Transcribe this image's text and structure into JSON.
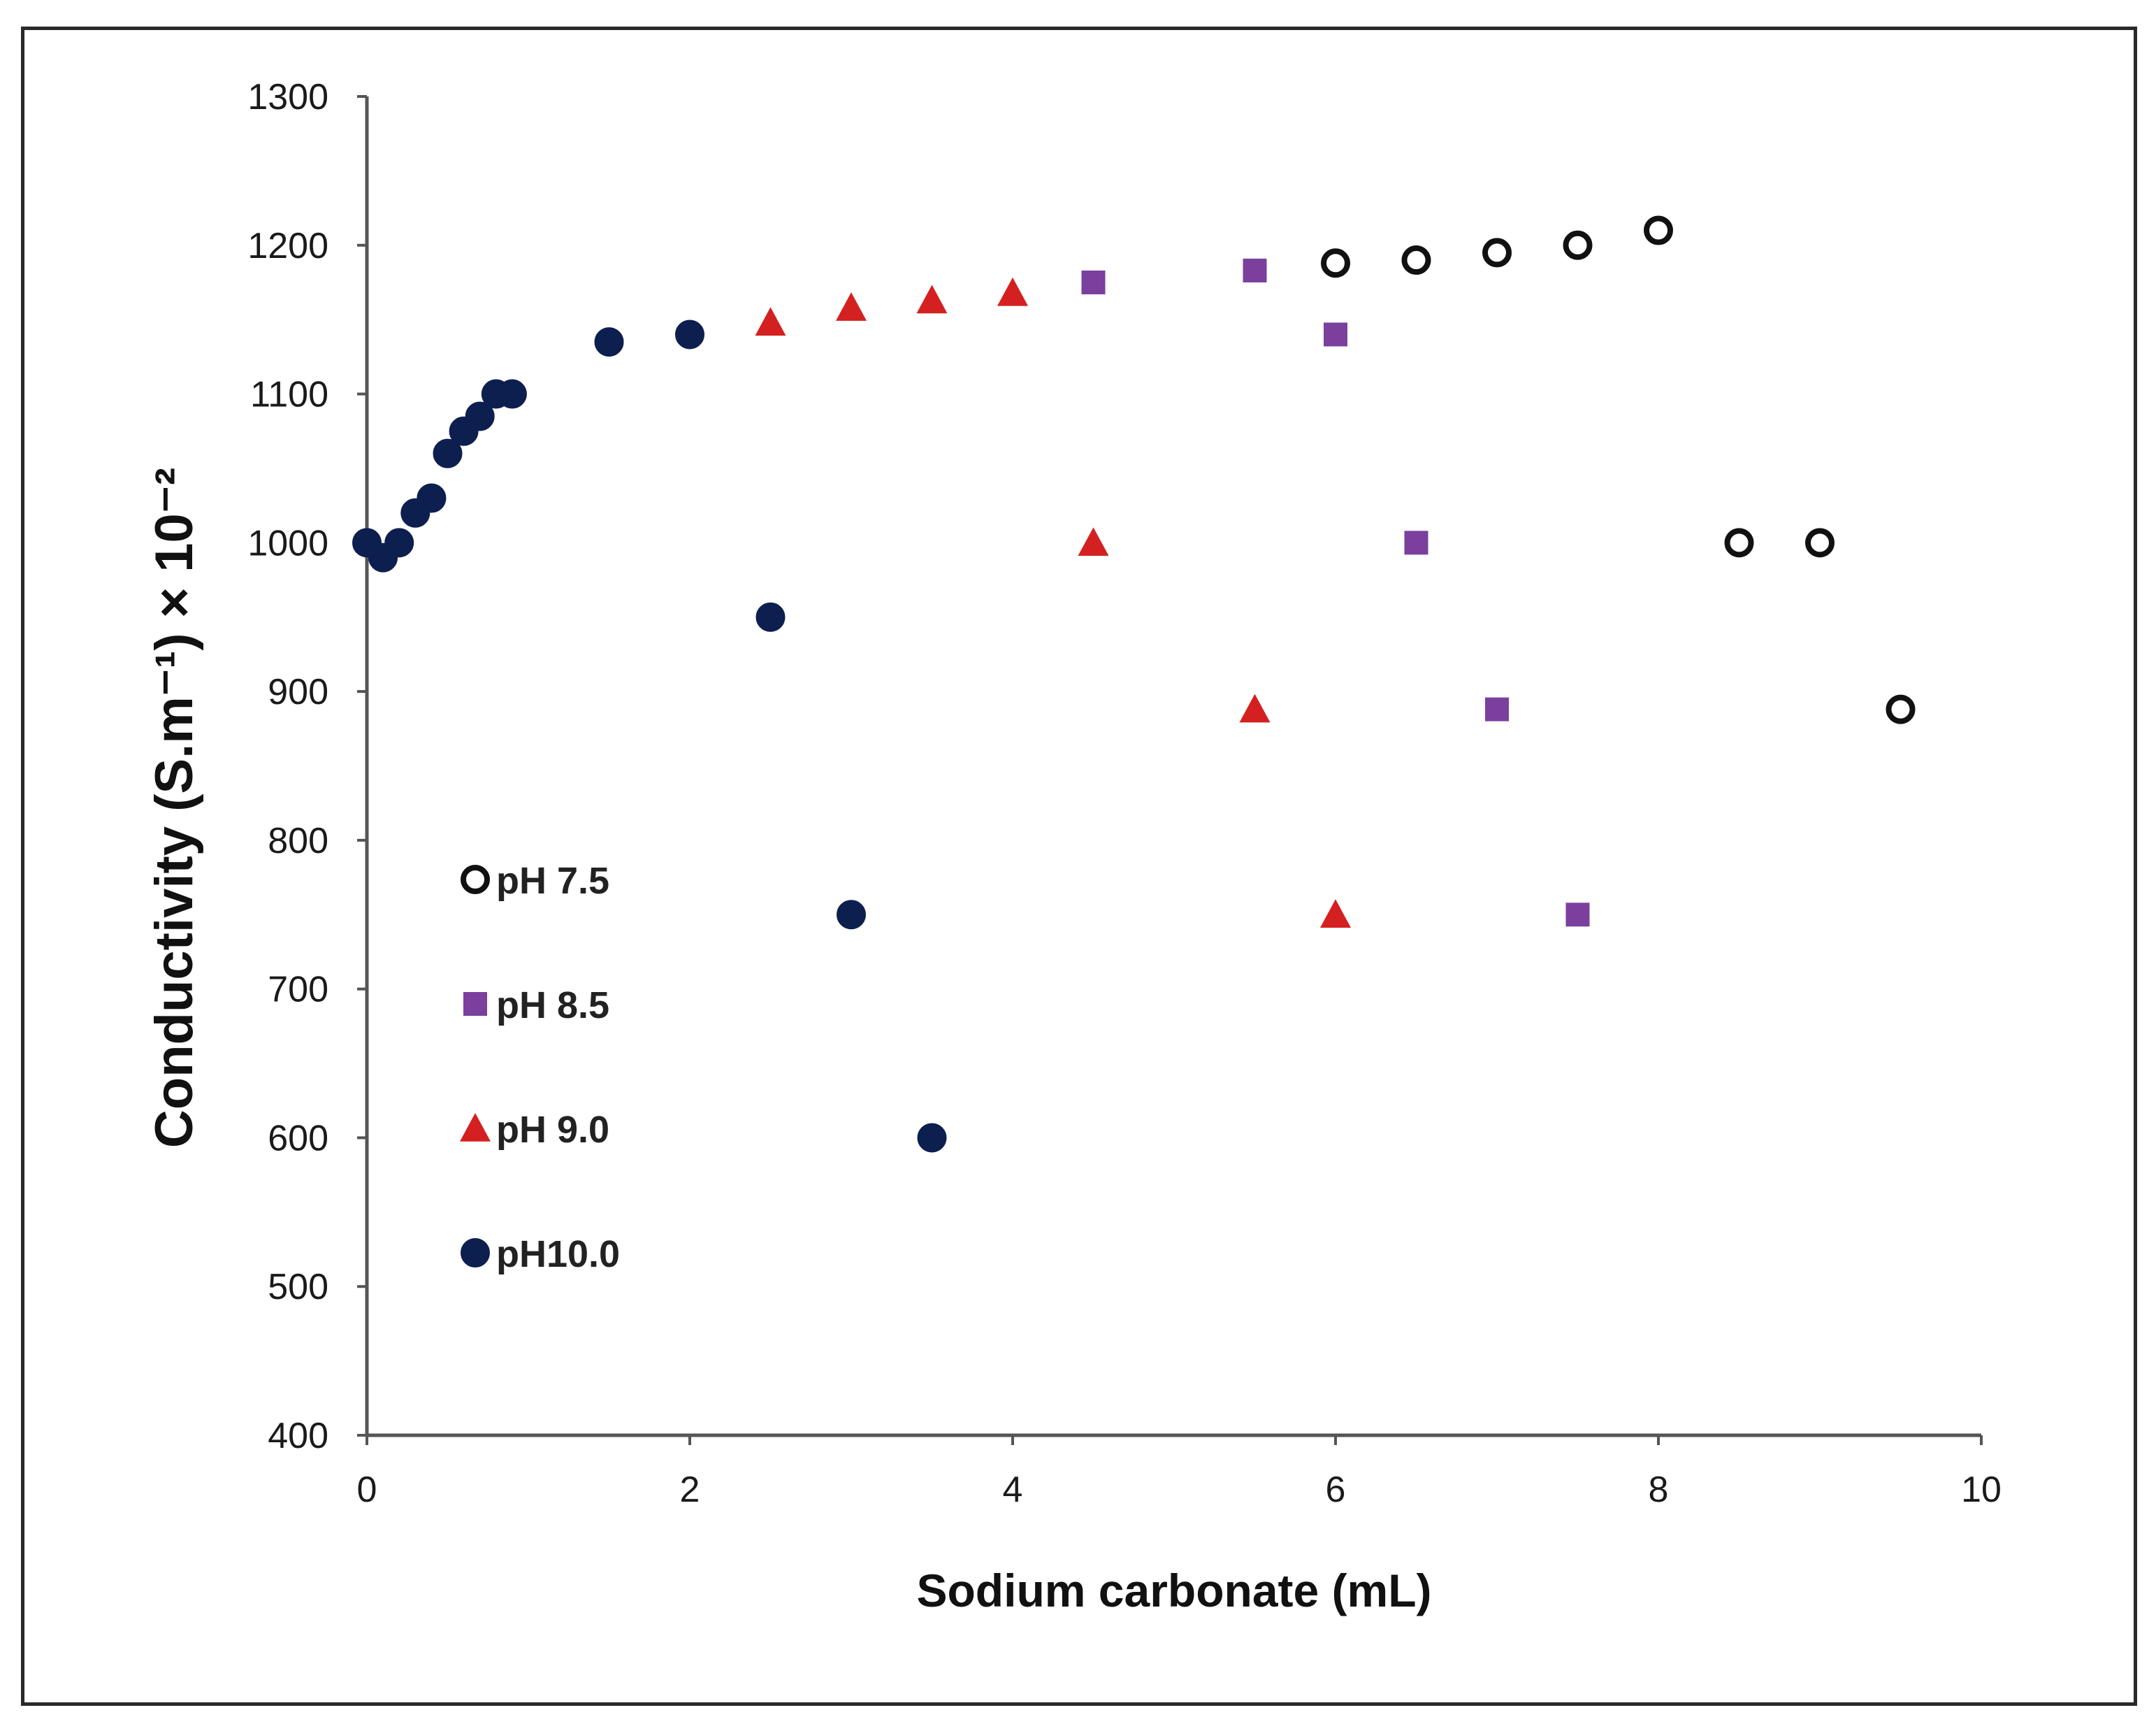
{
  "chart_data": {
    "type": "scatter",
    "title": "",
    "xlabel": "Sodium carbonate (mL)",
    "ylabel": "Conductivity (S.m⁻¹) × 10⁻²",
    "xlim": [
      0,
      10
    ],
    "ylim": [
      400,
      1300
    ],
    "x_ticks": [
      "0",
      "2",
      "4",
      "6",
      "8",
      "10"
    ],
    "y_ticks": [
      "400",
      "500",
      "600",
      "700",
      "800",
      "900",
      "1000",
      "1100",
      "1200",
      "1300"
    ],
    "grid": false,
    "legend_position": "left-center",
    "series": [
      {
        "name": "pH 7.5",
        "marker": "open-circle",
        "color": "#111111",
        "points": [
          [
            6.0,
            1188
          ],
          [
            6.5,
            1190
          ],
          [
            7.0,
            1195
          ],
          [
            7.5,
            1200
          ],
          [
            8.0,
            1210
          ],
          [
            8.5,
            1000
          ],
          [
            9.0,
            1000
          ],
          [
            9.5,
            888
          ]
        ]
      },
      {
        "name": "pH 8.5",
        "marker": "square",
        "color": "#7b3f9e",
        "points": [
          [
            4.5,
            1175
          ],
          [
            5.5,
            1183
          ],
          [
            6.0,
            1140
          ],
          [
            6.5,
            1000
          ],
          [
            7.0,
            888
          ],
          [
            7.5,
            750
          ]
        ]
      },
      {
        "name": "pH 9.0",
        "marker": "triangle",
        "color": "#d42020",
        "points": [
          [
            2.5,
            1148
          ],
          [
            3.0,
            1158
          ],
          [
            3.5,
            1163
          ],
          [
            4.0,
            1168
          ],
          [
            4.5,
            1000
          ],
          [
            5.5,
            888
          ],
          [
            6.0,
            750
          ]
        ]
      },
      {
        "name": "pH10.0",
        "marker": "filled-circle",
        "color": "#0d1f4f",
        "points": [
          [
            0,
            1000
          ],
          [
            0.1,
            990
          ],
          [
            0.2,
            1000
          ],
          [
            0.3,
            1020
          ],
          [
            0.4,
            1030
          ],
          [
            0.5,
            1060
          ],
          [
            0.6,
            1075
          ],
          [
            0.7,
            1085
          ],
          [
            0.8,
            1100
          ],
          [
            0.9,
            1100
          ],
          [
            1.5,
            1135
          ],
          [
            2.0,
            1140
          ],
          [
            2.5,
            950
          ],
          [
            3.0,
            750
          ],
          [
            3.5,
            600
          ]
        ]
      }
    ]
  }
}
